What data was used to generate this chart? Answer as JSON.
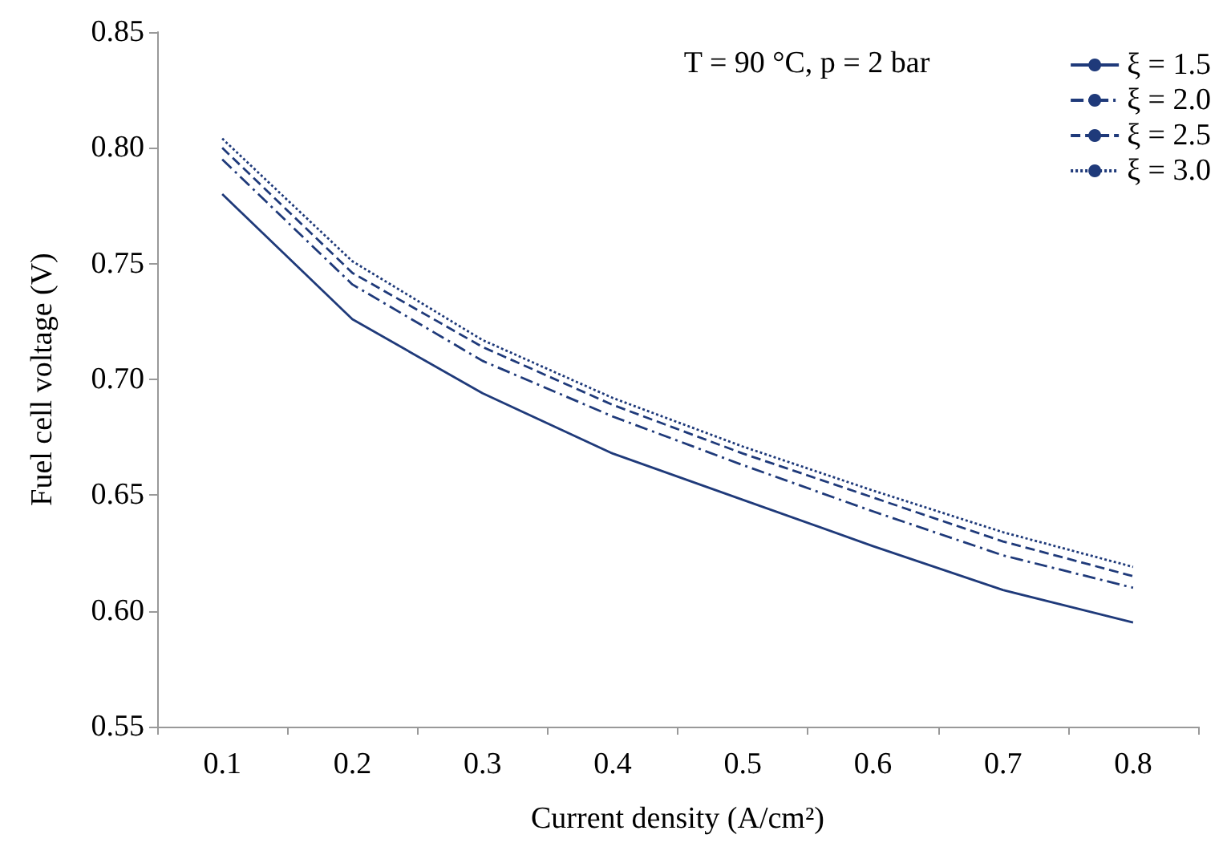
{
  "chart_data": {
    "type": "line",
    "xlabel": "Current density (A/cm²)",
    "ylabel": "Fuel cell voltage (V)",
    "annotations": [
      "T = 90 °C, p = 2 bar"
    ],
    "categories": [
      "0.1",
      "0.2",
      "0.3",
      "0.4",
      "0.5",
      "0.6",
      "0.7",
      "0.8"
    ],
    "series": [
      {
        "name": "ξ = 1.5",
        "color": "#1f3a7a",
        "line_style": "solid",
        "values": [
          0.78,
          0.726,
          0.694,
          0.668,
          0.648,
          0.628,
          0.609,
          0.595
        ]
      },
      {
        "name": "ξ = 2.0",
        "color": "#1f3a7a",
        "line_style": "dashdot",
        "values": [
          0.795,
          0.741,
          0.708,
          0.684,
          0.663,
          0.643,
          0.624,
          0.61
        ]
      },
      {
        "name": "ξ = 2.5",
        "color": "#1f3a7a",
        "line_style": "dashed",
        "values": [
          0.8,
          0.746,
          0.714,
          0.689,
          0.668,
          0.649,
          0.63,
          0.615
        ]
      },
      {
        "name": "ξ = 3.0",
        "color": "#1f3a7a",
        "line_style": "dotted",
        "values": [
          0.804,
          0.751,
          0.717,
          0.692,
          0.671,
          0.652,
          0.634,
          0.619
        ]
      }
    ],
    "ylim": [
      0.55,
      0.85
    ],
    "yticks": [
      0.55,
      {
        "value": 0.6,
        "label": "0.60"
      },
      0.65,
      {
        "value": 0.7,
        "label": "0.70"
      },
      0.75,
      {
        "value": 0.8,
        "label": "0.80"
      },
      0.85
    ],
    "grid": false,
    "legend": "top right",
    "marker": "none"
  }
}
